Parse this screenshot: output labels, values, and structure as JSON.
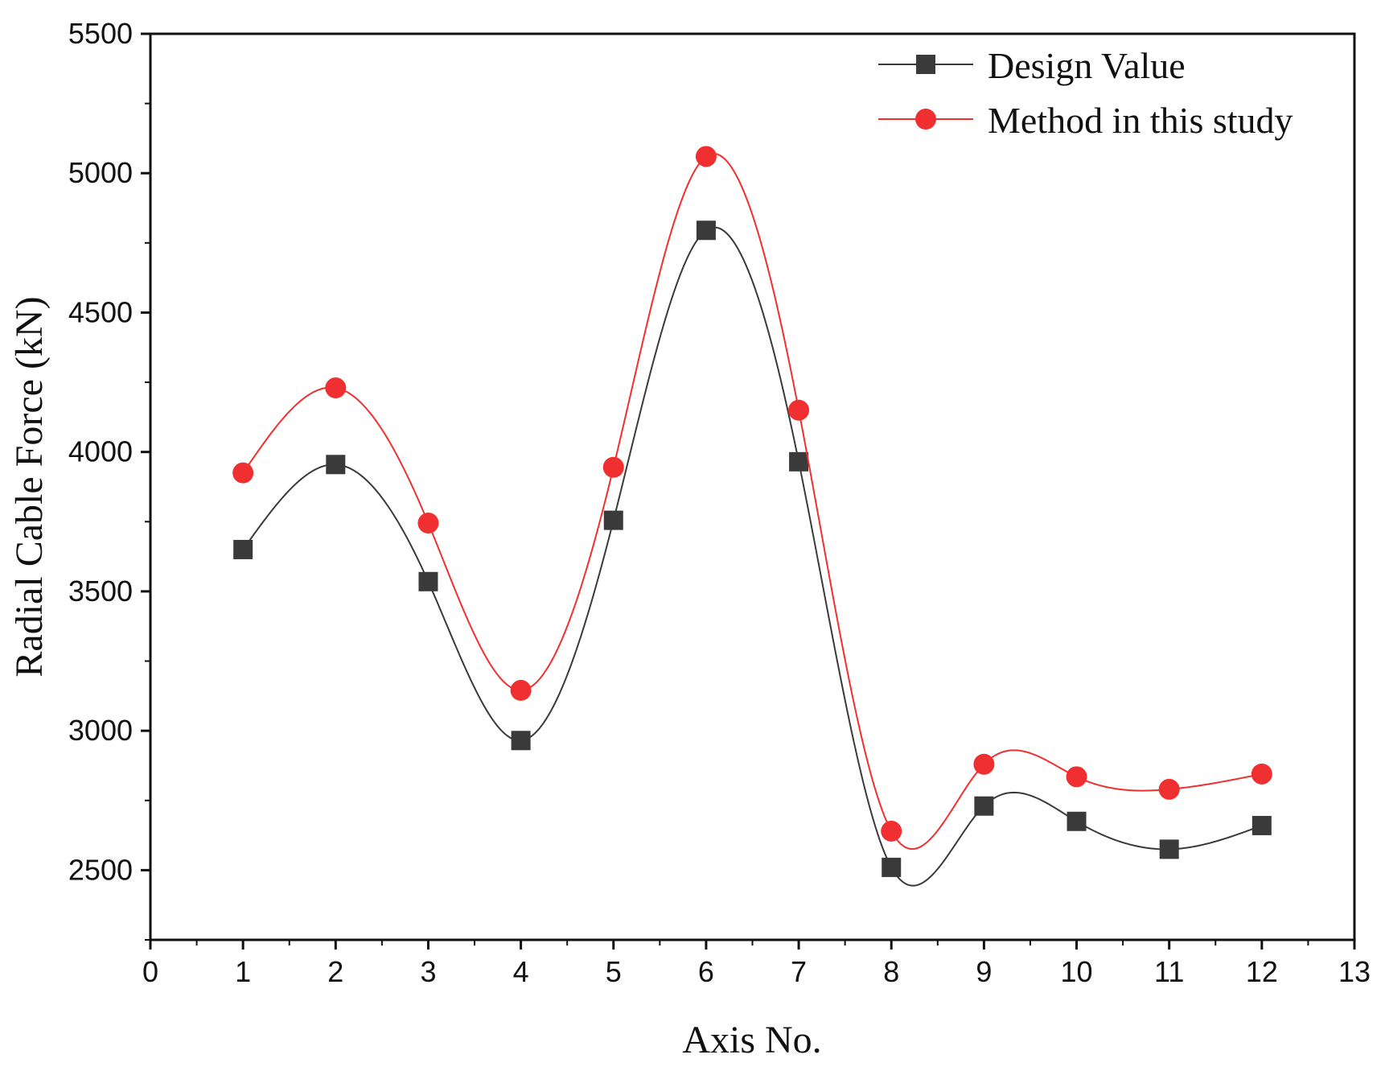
{
  "chart_data": {
    "type": "line",
    "title": "",
    "xlabel": "Axis No.",
    "ylabel": "Radial Cable Force (kN)",
    "xlim": [
      0,
      13
    ],
    "ylim": [
      2250,
      5500
    ],
    "xticks": [
      "0",
      "1",
      "2",
      "3",
      "4",
      "5",
      "6",
      "7",
      "8",
      "9",
      "10",
      "11",
      "12",
      "13"
    ],
    "yticks": [
      "2500",
      "3000",
      "3500",
      "4000",
      "4500",
      "5000",
      "5500"
    ],
    "grid": false,
    "legend_position": "top-right",
    "smooth": true,
    "x": [
      1,
      2,
      3,
      4,
      5,
      6,
      7,
      8,
      9,
      10,
      11,
      12
    ],
    "series": [
      {
        "name": "Design Value",
        "color": "#3a3a3a",
        "marker": "square",
        "values": [
          3650,
          3955,
          3535,
          2965,
          3755,
          4795,
          3965,
          2510,
          2730,
          2675,
          2575,
          2660
        ]
      },
      {
        "name": "Method in this study",
        "color": "#f03030",
        "marker": "circle",
        "values": [
          3925,
          4230,
          3745,
          3145,
          3945,
          5060,
          4150,
          2640,
          2880,
          2835,
          2790,
          2845
        ]
      }
    ]
  }
}
